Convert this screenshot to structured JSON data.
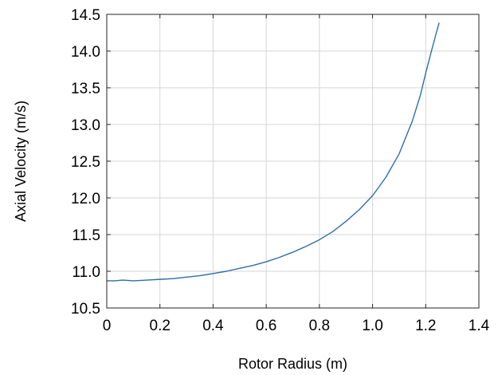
{
  "chart_data": {
    "type": "line",
    "title": "",
    "xlabel": "Rotor Radius (m)",
    "ylabel": "Axial Velocity (m/s)",
    "xlim": [
      0,
      1.4
    ],
    "ylim": [
      10.5,
      14.5
    ],
    "xticks": [
      "0",
      "0.2",
      "0.4",
      "0.6",
      "0.8",
      "1.0",
      "1.2",
      "1.4"
    ],
    "yticks": [
      "10.5",
      "11.0",
      "11.5",
      "12.0",
      "12.5",
      "13.0",
      "13.5",
      "14.0",
      "14.5"
    ],
    "grid": true,
    "legend": "none",
    "series": [
      {
        "color": "#2f6ea8",
        "x": [
          0,
          0.03,
          0.06,
          0.1,
          0.15,
          0.2,
          0.25,
          0.3,
          0.35,
          0.4,
          0.45,
          0.5,
          0.55,
          0.6,
          0.65,
          0.7,
          0.75,
          0.8,
          0.85,
          0.9,
          0.95,
          1.0,
          1.05,
          1.1,
          1.15,
          1.18,
          1.2,
          1.22,
          1.24,
          1.25
        ],
        "y": [
          10.87,
          10.87,
          10.88,
          10.87,
          10.88,
          10.89,
          10.9,
          10.92,
          10.94,
          10.97,
          11.0,
          11.04,
          11.08,
          11.13,
          11.19,
          11.26,
          11.34,
          11.43,
          11.54,
          11.68,
          11.84,
          12.03,
          12.28,
          12.6,
          13.05,
          13.4,
          13.7,
          13.98,
          14.25,
          14.38
        ]
      }
    ]
  }
}
